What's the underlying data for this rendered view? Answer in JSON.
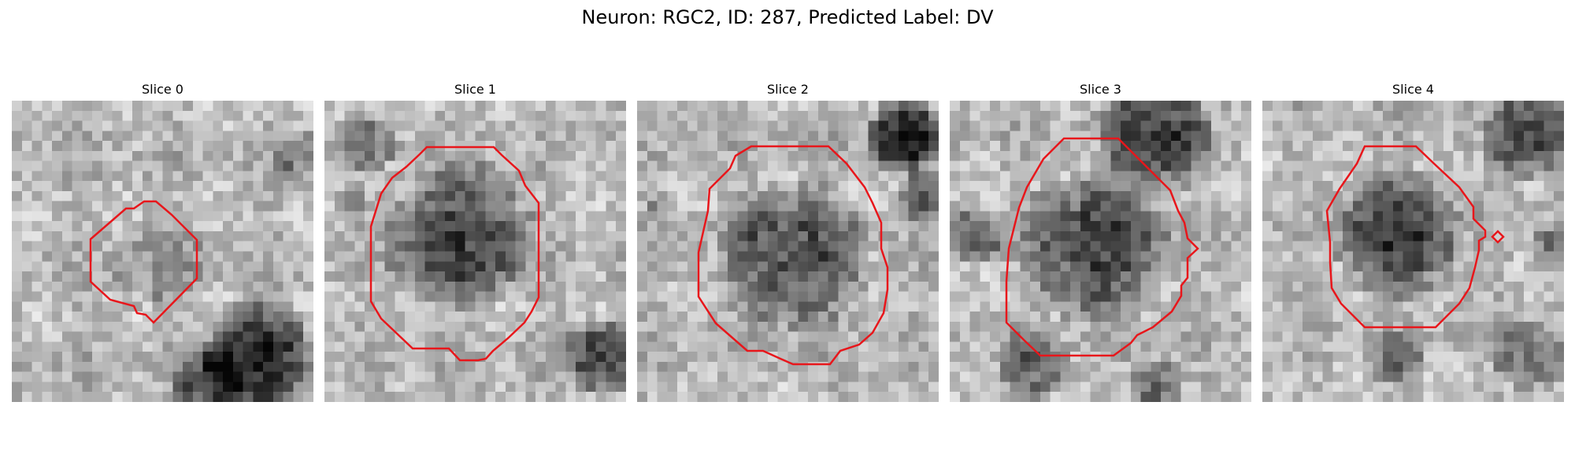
{
  "figure": {
    "title": "Neuron: RGC2, ID: 287, Predicted Label: DV"
  },
  "panels": [
    {
      "title": "Slice 0",
      "image": "grayscale microscopy slice",
      "contour_color": "#e8161b"
    },
    {
      "title": "Slice 1",
      "image": "grayscale microscopy slice",
      "contour_color": "#e8161b"
    },
    {
      "title": "Slice 2",
      "image": "grayscale microscopy slice",
      "contour_color": "#e8161b"
    },
    {
      "title": "Slice 3",
      "image": "grayscale microscopy slice",
      "contour_color": "#e8161b"
    },
    {
      "title": "Slice 4",
      "image": "grayscale microscopy slice",
      "contour_color": "#e8161b"
    }
  ]
}
